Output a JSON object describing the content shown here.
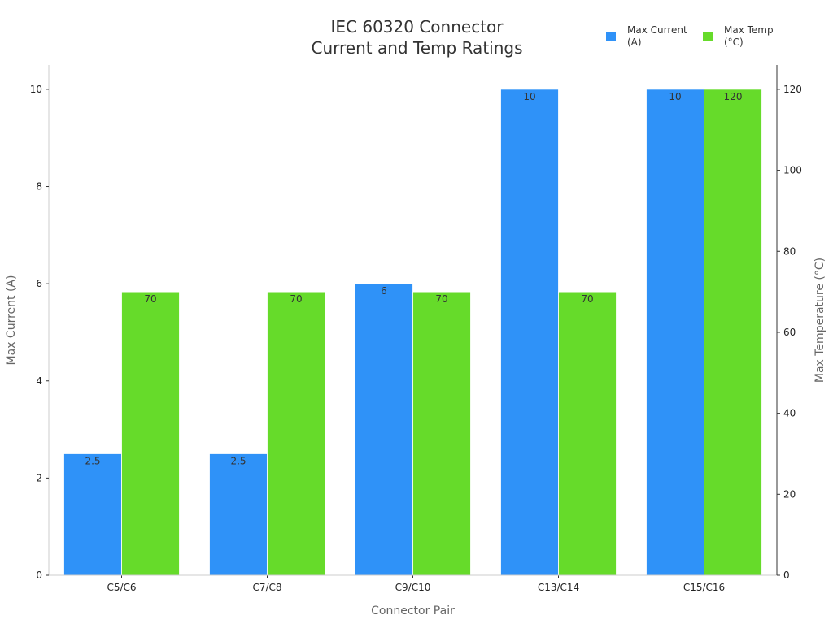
{
  "chart_data": {
    "type": "bar",
    "title_lines": [
      "IEC 60320 Connector",
      "Current and Temp Ratings"
    ],
    "xlabel": "Connector Pair",
    "ylabel": "Max Current (A)",
    "y2label": "Max Temperature (°C)",
    "categories": [
      "C5/C6",
      "C7/C8",
      "C9/C10",
      "C13/C14",
      "C15/C16"
    ],
    "series": [
      {
        "name_lines": [
          "Max Current",
          "(A)"
        ],
        "axis": "left",
        "color": "#2F92F8",
        "values": [
          2.5,
          2.5,
          6,
          10,
          10
        ],
        "labels": [
          "2.5",
          "2.5",
          "6",
          "10",
          "10"
        ]
      },
      {
        "name_lines": [
          "Max Temp",
          "(°C)"
        ],
        "axis": "right",
        "color": "#66DB2A",
        "values": [
          70,
          70,
          70,
          70,
          120
        ],
        "labels": [
          "70",
          "70",
          "70",
          "70",
          "120"
        ]
      }
    ],
    "ylim": [
      0,
      10.5
    ],
    "y2lim": [
      0,
      126
    ],
    "yticks": [
      "0",
      "2",
      "4",
      "6",
      "8",
      "10"
    ],
    "y2ticks": [
      "0",
      "20",
      "40",
      "60",
      "80",
      "100",
      "120"
    ],
    "grid": false,
    "legend_position": "top-right"
  }
}
